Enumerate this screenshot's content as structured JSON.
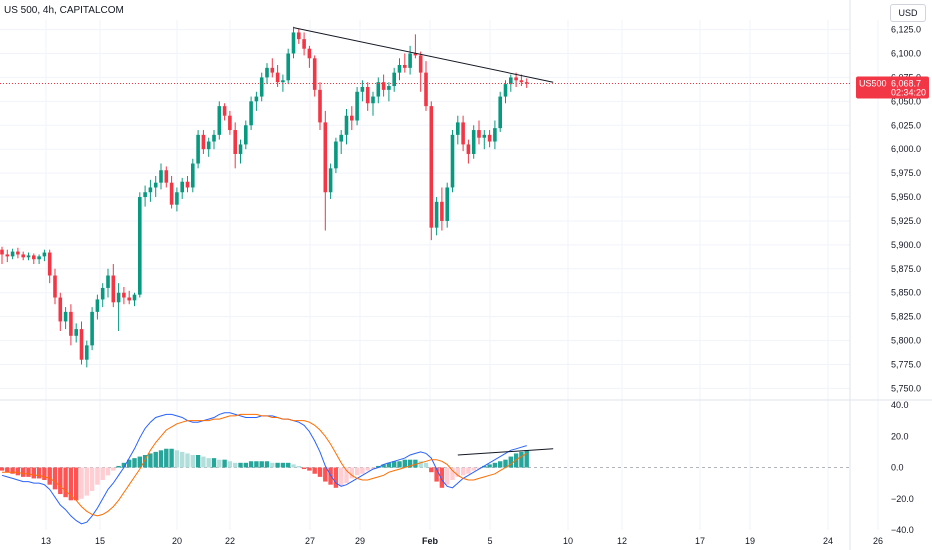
{
  "header": {
    "title": "US 500, 4h, CAPITALCOM",
    "currency": "USD"
  },
  "price_label": {
    "symbol": "US500",
    "price": "6,068.7",
    "countdown": "02:34:20",
    "color": "#f23645"
  },
  "colors": {
    "up": "#089981",
    "down": "#f23645",
    "hist_up_strong": "#26a69a",
    "hist_up_weak": "#b2dfdb",
    "hist_down_strong": "#ff5252",
    "hist_down_weak": "#ffcdd2",
    "macd_line": "#2962ff",
    "signal_line": "#ff6d00",
    "trendline": "#131722"
  },
  "chart_data": [
    {
      "type": "candlestick",
      "title": "US 500, 4h, CAPITALCOM",
      "x_ticks": [
        "13",
        "15",
        "20",
        "22",
        "27",
        "29",
        "Feb",
        "5",
        "10",
        "12",
        "17",
        "19",
        "24",
        "26"
      ],
      "y_ticks": [
        6125,
        6100,
        6075,
        6050,
        6025,
        6000,
        5975,
        5950,
        5925,
        5900,
        5875,
        5850,
        5825,
        5800,
        5775,
        5750
      ],
      "ylim": [
        5740,
        6135
      ],
      "last_price": 6068.7,
      "grid": true,
      "ohlc": [
        [
          5895,
          5898,
          5880,
          5890
        ],
        [
          5890,
          5895,
          5882,
          5888
        ],
        [
          5888,
          5896,
          5885,
          5893
        ],
        [
          5893,
          5897,
          5886,
          5890
        ],
        [
          5890,
          5893,
          5884,
          5887
        ],
        [
          5887,
          5892,
          5884,
          5889
        ],
        [
          5889,
          5891,
          5880,
          5885
        ],
        [
          5885,
          5890,
          5880,
          5888
        ],
        [
          5888,
          5895,
          5883,
          5892
        ],
        [
          5892,
          5895,
          5860,
          5868
        ],
        [
          5868,
          5875,
          5838,
          5845
        ],
        [
          5845,
          5850,
          5810,
          5820
        ],
        [
          5820,
          5835,
          5812,
          5830
        ],
        [
          5830,
          5838,
          5795,
          5805
        ],
        [
          5805,
          5818,
          5798,
          5812
        ],
        [
          5812,
          5820,
          5775,
          5780
        ],
        [
          5780,
          5800,
          5772,
          5795
        ],
        [
          5795,
          5835,
          5790,
          5830
        ],
        [
          5830,
          5848,
          5822,
          5843
        ],
        [
          5843,
          5860,
          5835,
          5855
        ],
        [
          5855,
          5875,
          5845,
          5868
        ],
        [
          5868,
          5880,
          5835,
          5840
        ],
        [
          5840,
          5860,
          5810,
          5850
        ],
        [
          5850,
          5856,
          5838,
          5845
        ],
        [
          5845,
          5852,
          5838,
          5842
        ],
        [
          5842,
          5850,
          5836,
          5848
        ],
        [
          5848,
          5955,
          5845,
          5950
        ],
        [
          5950,
          5962,
          5940,
          5955
        ],
        [
          5955,
          5968,
          5945,
          5960
        ],
        [
          5960,
          5972,
          5950,
          5965
        ],
        [
          5965,
          5985,
          5958,
          5978
        ],
        [
          5978,
          5982,
          5960,
          5965
        ],
        [
          5965,
          5972,
          5938,
          5942
        ],
        [
          5942,
          5960,
          5935,
          5955
        ],
        [
          5955,
          5970,
          5948,
          5966
        ],
        [
          5966,
          5972,
          5955,
          5960
        ],
        [
          5960,
          5990,
          5955,
          5985
        ],
        [
          5985,
          6020,
          5980,
          6015
        ],
        [
          6015,
          6020,
          5995,
          6000
        ],
        [
          6000,
          6012,
          5992,
          6008
        ],
        [
          6008,
          6020,
          6000,
          6015
        ],
        [
          6015,
          6050,
          6010,
          6045
        ],
        [
          6045,
          6048,
          6030,
          6035
        ],
        [
          6035,
          6040,
          6015,
          6020
        ],
        [
          6020,
          6028,
          5980,
          5995
        ],
        [
          5995,
          6010,
          5985,
          6005
        ],
        [
          6005,
          6030,
          6000,
          6025
        ],
        [
          6025,
          6055,
          6020,
          6050
        ],
        [
          6050,
          6060,
          6040,
          6055
        ],
        [
          6055,
          6080,
          6050,
          6075
        ],
        [
          6075,
          6090,
          6068,
          6085
        ],
        [
          6085,
          6095,
          6075,
          6080
        ],
        [
          6080,
          6088,
          6065,
          6070
        ],
        [
          6070,
          6078,
          6060,
          6072
        ],
        [
          6072,
          6105,
          6068,
          6100
        ],
        [
          6100,
          6128,
          6095,
          6122
        ],
        [
          6122,
          6126,
          6110,
          6115
        ],
        [
          6115,
          6122,
          6098,
          6105
        ],
        [
          6105,
          6108,
          6085,
          6095
        ],
        [
          6095,
          6098,
          6055,
          6062
        ],
        [
          6062,
          6070,
          6020,
          6028
        ],
        [
          6028,
          6040,
          5915,
          5955
        ],
        [
          5955,
          5985,
          5948,
          5980
        ],
        [
          5980,
          6012,
          5975,
          6008
        ],
        [
          6008,
          6020,
          5995,
          6015
        ],
        [
          6015,
          6042,
          6005,
          6035
        ],
        [
          6035,
          6045,
          6020,
          6030
        ],
        [
          6030,
          6065,
          6025,
          6060
        ],
        [
          6060,
          6072,
          6050,
          6065
        ],
        [
          6065,
          6070,
          6040,
          6048
        ],
        [
          6048,
          6060,
          6035,
          6055
        ],
        [
          6055,
          6075,
          6048,
          6070
        ],
        [
          6070,
          6078,
          6055,
          6062
        ],
        [
          6062,
          6070,
          6050,
          6066
        ],
        [
          6066,
          6085,
          6060,
          6080
        ],
        [
          6080,
          6095,
          6072,
          6088
        ],
        [
          6088,
          6100,
          6080,
          6085
        ],
        [
          6085,
          6108,
          6078,
          6100
        ],
        [
          6100,
          6120,
          6095,
          6098
        ],
        [
          6098,
          6102,
          6060,
          6080
        ],
        [
          6080,
          6092,
          6040,
          6045
        ],
        [
          6045,
          6050,
          5905,
          5918
        ],
        [
          5918,
          5950,
          5910,
          5945
        ],
        [
          5945,
          5960,
          5915,
          5925
        ],
        [
          5925,
          5965,
          5918,
          5960
        ],
        [
          5960,
          6020,
          5955,
          6015
        ],
        [
          6015,
          6035,
          6005,
          6028
        ],
        [
          6028,
          6035,
          5998,
          6005
        ],
        [
          6005,
          6010,
          5985,
          5995
        ],
        [
          5995,
          6025,
          5990,
          6020
        ],
        [
          6020,
          6030,
          6005,
          6012
        ],
        [
          6012,
          6020,
          6000,
          6015
        ],
        [
          6015,
          6020,
          6002,
          6008
        ],
        [
          6008,
          6030,
          6000,
          6022
        ],
        [
          6022,
          6060,
          6018,
          6055
        ],
        [
          6055,
          6072,
          6048,
          6068
        ],
        [
          6068,
          6078,
          6060,
          6075
        ],
        [
          6075,
          6080,
          6065,
          6072
        ],
        [
          6072,
          6078,
          6066,
          6070
        ],
        [
          6070,
          6074,
          6064,
          6068.7
        ]
      ],
      "trendline": [
        [
          55,
          6127
        ],
        [
          104,
          6070
        ]
      ]
    },
    {
      "type": "macd",
      "y_ticks": [
        40,
        20,
        0,
        -20,
        -40
      ],
      "ylim": [
        -40,
        40
      ],
      "series": [
        {
          "kind": "histogram",
          "values": [
            -2,
            -3,
            -4,
            -5,
            -6,
            -6,
            -7,
            -7,
            -8,
            -11,
            -14,
            -17,
            -19,
            -21,
            -21,
            -20,
            -18,
            -15,
            -11,
            -8,
            -5,
            -2,
            1,
            3,
            5,
            6,
            7,
            8,
            9,
            10,
            11,
            12,
            12,
            11,
            10,
            9,
            8,
            8,
            7,
            6,
            6,
            5,
            5,
            4,
            3,
            3,
            3,
            4,
            4,
            4,
            4,
            3,
            3,
            3,
            3,
            2,
            1,
            -1,
            -2,
            -4,
            -6,
            -9,
            -11,
            -13,
            -12,
            -10,
            -7,
            -5,
            -4,
            -2,
            -1,
            1,
            2,
            3,
            4,
            4,
            5,
            5,
            5,
            4,
            3,
            -3,
            -9,
            -13,
            -11,
            -8,
            -6,
            -5,
            -4,
            -2,
            -1,
            1,
            2,
            3,
            4,
            5,
            7,
            9,
            10,
            11
          ]
        },
        {
          "kind": "line",
          "values": [
            -5,
            -6,
            -7,
            -8,
            -9,
            -9,
            -10,
            -10,
            -11,
            -14,
            -19,
            -24,
            -27,
            -31,
            -34,
            -36,
            -35,
            -31,
            -26,
            -20,
            -14,
            -10,
            -5,
            0,
            6,
            12,
            19,
            25,
            29,
            32,
            33,
            34,
            34,
            33,
            32,
            30,
            29,
            29,
            30,
            31,
            32,
            34,
            35,
            35,
            34,
            33,
            32,
            32,
            32,
            33,
            33,
            33,
            32,
            31,
            31,
            30,
            29,
            27,
            23,
            17,
            10,
            1,
            -5,
            -10,
            -12,
            -11,
            -9,
            -7,
            -5,
            -3,
            -1,
            0,
            2,
            3,
            4,
            5,
            6,
            8,
            9,
            10,
            9,
            6,
            -1,
            -8,
            -12,
            -13,
            -10,
            -7,
            -5,
            -3,
            -1,
            1,
            3,
            5,
            7,
            9,
            11,
            12,
            13,
            14
          ]
        },
        {
          "kind": "line",
          "values": [
            -3,
            -3,
            -3,
            -3,
            -4,
            -4,
            -5,
            -5,
            -6,
            -7,
            -9,
            -12,
            -15,
            -18,
            -21,
            -25,
            -28,
            -30,
            -31,
            -30,
            -28,
            -25,
            -21,
            -16,
            -11,
            -6,
            -1,
            5,
            11,
            16,
            20,
            24,
            26,
            28,
            29,
            30,
            30,
            30,
            30,
            30,
            31,
            31,
            32,
            33,
            33,
            34,
            34,
            34,
            34,
            33,
            33,
            32,
            32,
            31,
            31,
            30,
            30,
            30,
            29,
            27,
            24,
            20,
            15,
            9,
            3,
            -2,
            -5,
            -7,
            -8,
            -8,
            -7,
            -6,
            -5,
            -3,
            -2,
            -1,
            0,
            1,
            2,
            3,
            4,
            5,
            5,
            4,
            2,
            -2,
            -5,
            -7,
            -8,
            -8,
            -7,
            -6,
            -5,
            -4,
            -2,
            0,
            2,
            5,
            7,
            9
          ]
        }
      ],
      "trendline": [
        [
          86,
          8
        ],
        [
          104,
          12
        ]
      ]
    }
  ]
}
